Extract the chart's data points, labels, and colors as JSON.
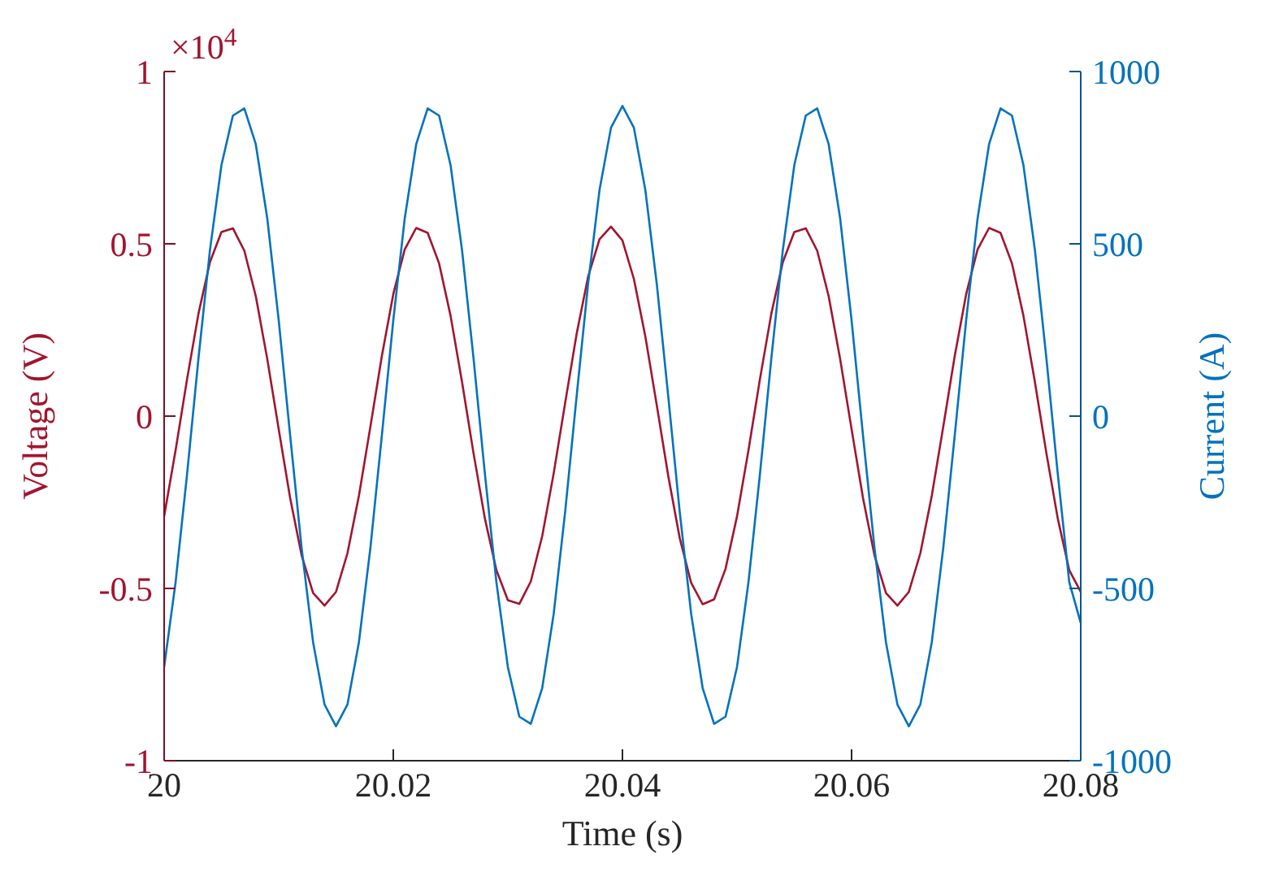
{
  "chart_data": {
    "type": "line",
    "xlabel": "Time (s)",
    "ylabel": "Voltage (V)",
    "y2label": "Current (A)",
    "annotations": [
      "×10$^{4}$"
    ],
    "x": [
      20,
      20.001,
      20.002,
      20.003,
      20.004,
      20.005,
      20.006,
      20.007,
      20.008,
      20.009,
      20.01,
      20.011,
      20.012,
      20.013,
      20.014,
      20.015,
      20.016,
      20.017,
      20.018,
      20.019,
      20.02,
      20.021,
      20.022,
      20.023,
      20.024,
      20.025,
      20.026,
      20.027,
      20.028,
      20.029,
      20.03,
      20.031,
      20.032,
      20.033,
      20.034,
      20.035,
      20.036,
      20.037,
      20.038,
      20.039,
      20.04,
      20.041,
      20.042,
      20.043,
      20.044,
      20.045,
      20.046,
      20.047,
      20.048,
      20.049,
      20.05,
      20.051,
      20.052,
      20.053,
      20.054,
      20.055,
      20.056,
      20.057,
      20.058,
      20.059,
      20.06,
      20.061,
      20.062,
      20.063,
      20.064,
      20.065,
      20.066,
      20.067,
      20.068,
      20.069,
      20.07,
      20.071,
      20.072,
      20.073,
      20.074,
      20.075,
      20.076,
      20.077,
      20.078,
      20.079,
      20.08
    ],
    "series": [
      {
        "color": "#a2142f",
        "values": [
          -0.291,
          -0.099,
          0.107,
          0.298,
          0.447,
          0.534,
          0.545,
          0.48,
          0.348,
          0.166,
          -0.038,
          -0.238,
          -0.404,
          -0.513,
          -0.55,
          -0.51,
          -0.398,
          -0.231,
          -0.031,
          0.174,
          0.354,
          0.484,
          0.546,
          0.532,
          0.443,
          0.291,
          0.099,
          -0.107,
          -0.298,
          -0.447,
          -0.534,
          -0.545,
          -0.48,
          -0.348,
          -0.166,
          0.038,
          0.238,
          0.404,
          0.513,
          0.55,
          0.51,
          0.398,
          0.231,
          0.031,
          -0.174,
          -0.354,
          -0.484,
          -0.546,
          -0.532,
          -0.443,
          -0.291,
          -0.099,
          0.107,
          0.298,
          0.447,
          0.534,
          0.545,
          0.48,
          0.348,
          0.166,
          -0.038,
          -0.238,
          -0.404,
          -0.513,
          -0.55,
          -0.51,
          -0.398,
          -0.231,
          -0.031,
          0.174,
          0.354,
          0.484,
          0.546,
          0.532,
          0.443,
          0.291,
          0.099,
          -0.107,
          -0.298,
          -0.447,
          -0.51
        ]
      },
      {
        "color": "#0072bd",
        "axis": "y2",
        "values": [
          -728,
          -482,
          -169,
          169,
          482,
          728,
          872,
          893,
          789,
          574,
          278,
          -57,
          -383,
          -656,
          -837,
          -900,
          -837,
          -656,
          -383,
          -57,
          278,
          574,
          789,
          893,
          872,
          728,
          482,
          169,
          -169,
          -482,
          -728,
          -872,
          -893,
          -789,
          -574,
          -278,
          57,
          383,
          656,
          837,
          900,
          837,
          656,
          383,
          57,
          -278,
          -574,
          -789,
          -893,
          -872,
          -728,
          -482,
          -169,
          169,
          482,
          728,
          872,
          893,
          789,
          574,
          278,
          -57,
          -383,
          -656,
          -837,
          -900,
          -837,
          -656,
          -383,
          -57,
          278,
          574,
          789,
          893,
          872,
          728,
          482,
          169,
          -169,
          -482,
          -600
        ]
      }
    ],
    "xlim": [
      20,
      20.08
    ],
    "xticks": [
      20,
      20.02,
      20.04,
      20.06,
      20.08
    ],
    "ylim": [
      -1,
      1
    ],
    "yticks": [
      -1,
      -0.5,
      0,
      0.5,
      1
    ],
    "y2lim": [
      -1000,
      1000
    ],
    "y2ticks": [
      -1000,
      -500,
      0,
      500,
      1000
    ],
    "grid": false,
    "legend": false
  }
}
